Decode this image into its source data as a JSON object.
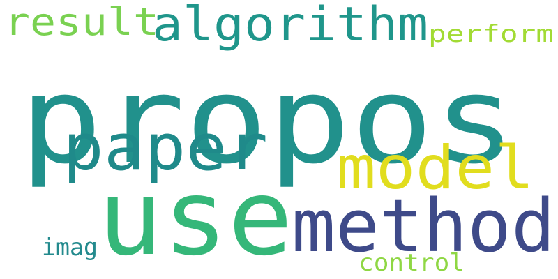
{
  "words": [
    {
      "id": "propos",
      "text": "propos",
      "color": "#21918c"
    },
    {
      "id": "use",
      "text": "use",
      "color": "#35b779"
    },
    {
      "id": "method",
      "text": "method",
      "color": "#3e4a89"
    },
    {
      "id": "paper",
      "text": "paper",
      "color": "#1f8a8a"
    },
    {
      "id": "model",
      "text": "model",
      "color": "#e1dd1e"
    },
    {
      "id": "algorithm",
      "text": "algorithm",
      "color": "#1f968b"
    },
    {
      "id": "result",
      "text": "result",
      "color": "#7ad151"
    },
    {
      "id": "perform",
      "text": "perform",
      "color": "#a2db34"
    },
    {
      "id": "control",
      "text": "control",
      "color": "#8fd744"
    },
    {
      "id": "imag",
      "text": "imag",
      "color": "#238a8d"
    }
  ]
}
